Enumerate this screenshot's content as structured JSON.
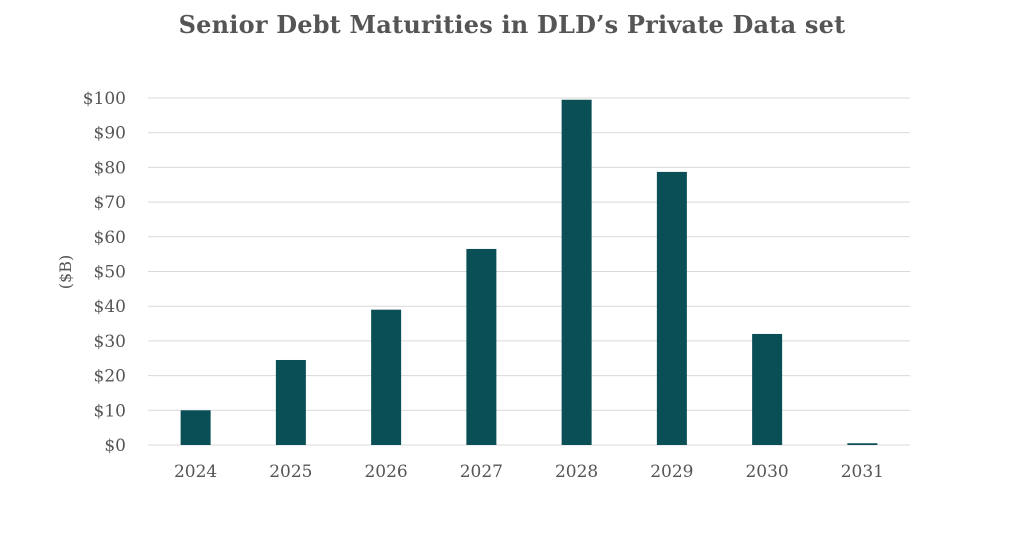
{
  "chart_data": {
    "type": "bar",
    "title": "Senior Debt Maturities in DLD’s Private Data set",
    "xlabel": "",
    "ylabel": "($B)",
    "categories": [
      "2024",
      "2025",
      "2026",
      "2027",
      "2028",
      "2029",
      "2030",
      "2031"
    ],
    "values": [
      10,
      24.5,
      39,
      56.5,
      99.5,
      78.7,
      32,
      0.5
    ],
    "ylim": [
      0,
      100
    ],
    "y_ticks": [
      0,
      10,
      20,
      30,
      40,
      50,
      60,
      70,
      80,
      90,
      100
    ],
    "y_tick_labels": [
      "$0",
      "$10",
      "$20",
      "$30",
      "$40",
      "$50",
      "$60",
      "$70",
      "$80",
      "$90",
      "$100"
    ],
    "grid": true,
    "legend": "none",
    "bar_color": "#0a4f55",
    "grid_color": "#d9d9d9"
  }
}
